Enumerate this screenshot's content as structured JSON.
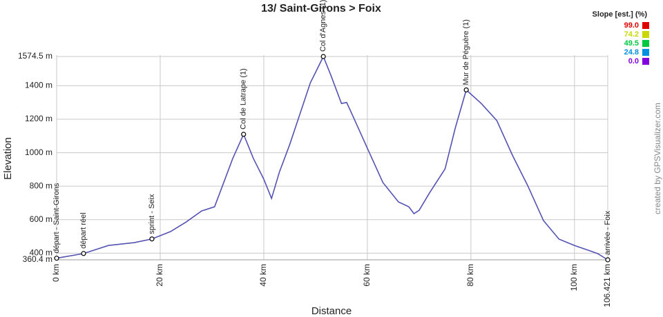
{
  "chart_data": {
    "type": "line",
    "title": "13/ Saint-Girons > Foix",
    "x_label": "Distance",
    "y_label": "Elevation",
    "credit": "created by GPSVisualizer.com",
    "x": [
      0,
      5.2,
      10,
      15,
      18.4,
      22,
      25,
      28,
      30.5,
      32,
      34,
      36.1,
      38,
      40,
      41.5,
      43,
      45,
      47,
      49,
      50,
      51.5,
      53,
      55,
      56,
      57,
      60,
      63,
      66,
      68,
      69,
      70,
      72,
      75,
      77,
      79.1,
      82,
      85,
      88,
      91,
      94,
      97,
      100,
      103,
      104.5,
      106.421
    ],
    "series": [
      {
        "name": "Elevation",
        "color": "#5252b4",
        "values": [
          370,
          398,
          446,
          463,
          485,
          529,
          586,
          652,
          677,
          800,
          965,
          1110,
          965,
          842,
          727,
          883,
          1048,
          1233,
          1418,
          1480,
          1574.5,
          1459,
          1294,
          1300,
          1233,
          1027,
          822,
          706,
          677,
          636,
          656,
          760,
          903,
          1150,
          1375,
          1294,
          1192,
          986,
          801,
          595,
          484,
          446,
          414,
          397,
          360.4
        ]
      }
    ],
    "xlim": [
      0,
      106.421
    ],
    "ylim": [
      360.4,
      1574.5
    ],
    "xticks": [
      {
        "value": 0,
        "label": "0 km"
      },
      {
        "value": 20,
        "label": "20 km"
      },
      {
        "value": 40,
        "label": "40 km"
      },
      {
        "value": 60,
        "label": "60 km"
      },
      {
        "value": 80,
        "label": "80 km"
      },
      {
        "value": 100,
        "label": "100 km"
      },
      {
        "value": 106.421,
        "label": "106.421 km"
      }
    ],
    "yticks": [
      {
        "value": 360.4,
        "label": "360.4 m"
      },
      {
        "value": 400,
        "label": "400 m"
      },
      {
        "value": 600,
        "label": "600 m"
      },
      {
        "value": 800,
        "label": "800 m"
      },
      {
        "value": 1000,
        "label": "1000 m"
      },
      {
        "value": 1200,
        "label": "1200 m"
      },
      {
        "value": 1400,
        "label": "1400 m"
      },
      {
        "value": 1574.5,
        "label": "1574.5 m"
      }
    ],
    "grid": true,
    "waypoints": [
      {
        "x": 0,
        "y": 370,
        "label": "départ - Saint-Girons"
      },
      {
        "x": 5.2,
        "y": 398,
        "label": "départ réel"
      },
      {
        "x": 18.4,
        "y": 485,
        "label": "sprint - Seix"
      },
      {
        "x": 36.1,
        "y": 1110,
        "label": "Col de Latrape (1)"
      },
      {
        "x": 51.5,
        "y": 1574.5,
        "label": "Col d'Agnes (1)"
      },
      {
        "x": 79.1,
        "y": 1375,
        "label": "Mur de Péguère (1)"
      },
      {
        "x": 106.421,
        "y": 360.4,
        "label": "arrivée - Foix"
      }
    ],
    "slope_legend": {
      "title": "Slope [est.] (%)",
      "items": [
        {
          "value": 99,
          "label": "99.0",
          "color": "#e00000"
        },
        {
          "value": 74.2,
          "label": "74.2",
          "color": "#c8d800"
        },
        {
          "value": 49.5,
          "label": "49.5",
          "color": "#00c840"
        },
        {
          "value": 24.8,
          "label": "24.8",
          "color": "#0090e0"
        },
        {
          "value": 0,
          "label": "0.0",
          "color": "#8000e0"
        }
      ]
    }
  }
}
